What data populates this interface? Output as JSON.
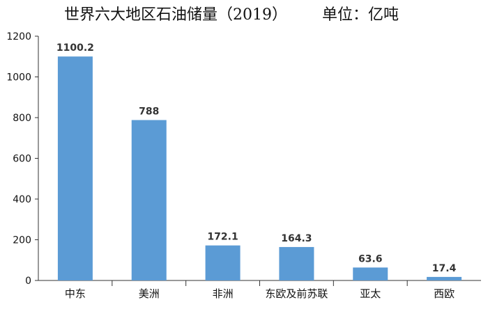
{
  "chart_data": {
    "type": "bar",
    "title": "世界六大地区石油储量（2019）",
    "unit_label": "单位：亿吨",
    "categories": [
      "中东",
      "美洲",
      "非洲",
      "东欧及前苏联",
      "亚太",
      "西欧"
    ],
    "values": [
      1100.2,
      788,
      172.1,
      164.3,
      63.6,
      17.4
    ],
    "value_labels": [
      "1100.2",
      "788",
      "172.1",
      "164.3",
      "63.6",
      "17.4"
    ],
    "ylim": [
      0,
      1200
    ],
    "yticks": [
      0,
      200,
      400,
      600,
      800,
      1000,
      1200
    ],
    "grid": false,
    "legend": false,
    "bar_color": "#5B9BD5"
  }
}
